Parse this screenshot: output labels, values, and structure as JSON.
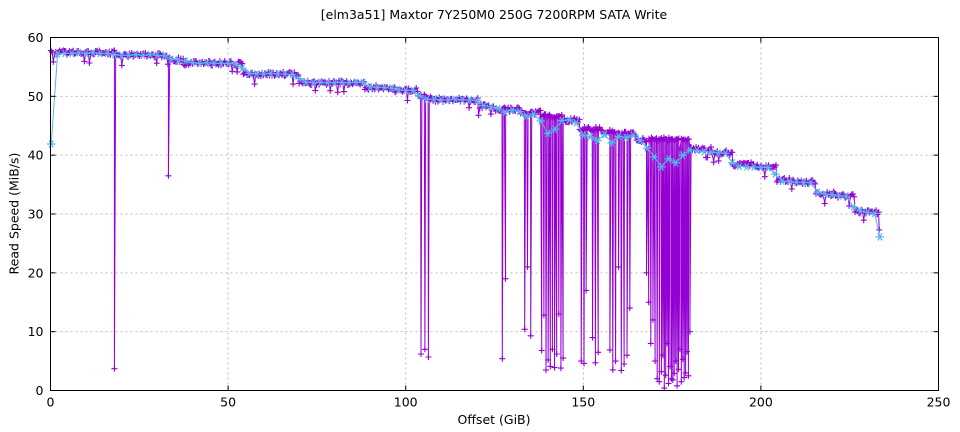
{
  "chart_data": {
    "type": "line",
    "title": "[elm3a51] Maxtor 7Y250M0 250G 7200RPM SATA Write",
    "xlabel": "Offset (GiB)",
    "ylabel": "Read Speed (MiB/s)",
    "xlim": [
      0,
      250
    ],
    "ylim": [
      0,
      60
    ],
    "xticks": [
      0,
      50,
      100,
      150,
      200,
      250
    ],
    "yticks": [
      0,
      10,
      20,
      30,
      40,
      50,
      60
    ],
    "grid": true,
    "legend": "none",
    "colors": {
      "raw": "#9400d3",
      "smooth": "#56b4e9",
      "grid": "#bdbdbd",
      "axis": "#000000",
      "background": "#ffffff"
    },
    "series": [
      {
        "name": "write-speed-samples",
        "style": "linespoints",
        "marker": "plus",
        "color_key": "raw",
        "sample_step_gib": 0.35,
        "band_jitter": 0.42,
        "plateau_segments": [
          [
            0.1,
            18,
            57.4
          ],
          [
            18,
            33.2,
            57.0
          ],
          [
            33.2,
            37.5,
            56.2
          ],
          [
            37.5,
            54.3,
            55.6
          ],
          [
            54.3,
            70,
            53.8
          ],
          [
            70,
            88.5,
            52.3
          ],
          [
            88.5,
            97,
            51.5
          ],
          [
            97,
            103.5,
            51.0
          ],
          [
            103.5,
            107,
            49.9
          ],
          [
            107,
            120.5,
            49.4
          ],
          [
            120.5,
            125,
            48.3
          ],
          [
            125,
            132,
            47.7
          ],
          [
            132,
            138,
            47.2
          ],
          [
            138,
            144,
            46.6
          ],
          [
            144,
            149,
            45.9
          ],
          [
            149,
            155,
            44.4
          ],
          [
            155,
            159.5,
            43.9
          ],
          [
            159.5,
            165,
            43.6
          ],
          [
            165,
            180,
            42.6
          ],
          [
            180,
            186,
            41.0
          ],
          [
            186,
            192,
            40.4
          ],
          [
            192,
            199,
            38.4
          ],
          [
            199,
            204.5,
            38.0
          ],
          [
            204.5,
            210,
            35.7
          ],
          [
            210,
            215.5,
            35.4
          ],
          [
            215.5,
            221,
            33.4
          ],
          [
            221,
            226.5,
            33.1
          ],
          [
            226.5,
            233.3,
            30.3
          ]
        ],
        "slow_spikes": [
          [
            18,
            3.7
          ],
          [
            33.2,
            36.5
          ],
          [
            104.3,
            6.2
          ],
          [
            105.4,
            7.0
          ],
          [
            106.4,
            5.7
          ],
          [
            127.2,
            5.4
          ],
          [
            128.1,
            19.0
          ],
          [
            133.5,
            10.4
          ],
          [
            134.3,
            21.0
          ],
          [
            135.2,
            9.3
          ],
          [
            138.3,
            6.8
          ],
          [
            138.9,
            12.8
          ],
          [
            139.5,
            3.5
          ],
          [
            140.1,
            5.2
          ],
          [
            140.7,
            4.1
          ],
          [
            141.3,
            7.0
          ],
          [
            141.9,
            3.9
          ],
          [
            142.5,
            6.2
          ],
          [
            143.1,
            13.0
          ],
          [
            143.7,
            3.8
          ],
          [
            144.3,
            5.5
          ],
          [
            149.4,
            5.0
          ],
          [
            150.2,
            4.6
          ],
          [
            150.8,
            17.0
          ],
          [
            152.6,
            9.0
          ],
          [
            153.4,
            4.7
          ],
          [
            154.2,
            6.5
          ],
          [
            157.5,
            6.9
          ],
          [
            158.3,
            3.5
          ],
          [
            159.1,
            5.0
          ],
          [
            159.9,
            21.0
          ],
          [
            160.7,
            3.4
          ],
          [
            161.5,
            4.5
          ],
          [
            162.3,
            6.0
          ],
          [
            163.1,
            14.0
          ],
          [
            167.8,
            20.0
          ],
          [
            168.4,
            15.0
          ],
          [
            169.0,
            8.0
          ],
          [
            169.6,
            12.0
          ],
          [
            170.2,
            5.0
          ],
          [
            170.8,
            2.0
          ],
          [
            171.4,
            1.5
          ],
          [
            172.0,
            3.2
          ],
          [
            172.4,
            6.0
          ],
          [
            172.8,
            0.4
          ],
          [
            173.2,
            2.6
          ],
          [
            173.6,
            8.0
          ],
          [
            174.0,
            1.2
          ],
          [
            174.4,
            4.1
          ],
          [
            174.8,
            2.0
          ],
          [
            175.2,
            1.8
          ],
          [
            175.6,
            2.9
          ],
          [
            176.0,
            5.0
          ],
          [
            176.4,
            0.8
          ],
          [
            176.8,
            3.6
          ],
          [
            177.2,
            7.0
          ],
          [
            177.6,
            1.5
          ],
          [
            178.0,
            5.3
          ],
          [
            178.4,
            2.2
          ],
          [
            178.8,
            3.0
          ],
          [
            179.2,
            6.6
          ],
          [
            179.6,
            2.5
          ],
          [
            180.0,
            10.0
          ],
          [
            233.3,
            27.3
          ]
        ]
      },
      {
        "name": "write-speed-smoothed",
        "style": "linespoints",
        "marker": "asterisk",
        "color_key": "smooth",
        "points": [
          [
            0.2,
            41.9
          ],
          [
            2,
            57.2
          ],
          [
            4,
            57.3
          ],
          [
            6,
            57.3
          ],
          [
            8,
            57.4
          ],
          [
            10,
            57.3
          ],
          [
            12,
            57.4
          ],
          [
            14,
            57.3
          ],
          [
            16,
            57.3
          ],
          [
            18,
            57.1
          ],
          [
            20,
            57.0
          ],
          [
            22,
            57.0
          ],
          [
            24,
            57.1
          ],
          [
            26,
            57.0
          ],
          [
            28,
            57.1
          ],
          [
            30,
            57.0
          ],
          [
            32,
            56.9
          ],
          [
            34,
            56.3
          ],
          [
            36,
            56.2
          ],
          [
            38,
            56.0
          ],
          [
            40,
            55.7
          ],
          [
            42,
            55.6
          ],
          [
            44,
            55.7
          ],
          [
            46,
            55.6
          ],
          [
            48,
            55.6
          ],
          [
            50,
            55.6
          ],
          [
            52,
            55.5
          ],
          [
            54,
            54.8
          ],
          [
            56,
            53.9
          ],
          [
            58,
            53.8
          ],
          [
            60,
            53.8
          ],
          [
            62,
            53.9
          ],
          [
            64,
            53.8
          ],
          [
            66,
            53.8
          ],
          [
            68,
            53.7
          ],
          [
            70,
            53.0
          ],
          [
            72,
            52.4
          ],
          [
            74,
            52.3
          ],
          [
            76,
            52.4
          ],
          [
            78,
            52.3
          ],
          [
            80,
            52.3
          ],
          [
            82,
            52.4
          ],
          [
            84,
            52.3
          ],
          [
            86,
            52.4
          ],
          [
            88,
            52.3
          ],
          [
            90,
            51.6
          ],
          [
            92,
            51.5
          ],
          [
            94,
            51.5
          ],
          [
            96,
            51.4
          ],
          [
            98,
            51.1
          ],
          [
            100,
            51.0
          ],
          [
            102,
            51.0
          ],
          [
            104,
            50.1
          ],
          [
            106,
            49.5
          ],
          [
            108,
            49.5
          ],
          [
            110,
            49.4
          ],
          [
            112,
            49.4
          ],
          [
            114,
            49.5
          ],
          [
            116,
            49.4
          ],
          [
            118,
            49.4
          ],
          [
            120,
            49.3
          ],
          [
            122,
            48.4
          ],
          [
            124,
            48.2
          ],
          [
            126,
            47.9
          ],
          [
            128,
            47.3
          ],
          [
            130,
            47.7
          ],
          [
            132,
            47.4
          ],
          [
            134,
            46.6
          ],
          [
            136,
            47.0
          ],
          [
            138,
            45.8
          ],
          [
            140,
            43.7
          ],
          [
            142,
            44.4
          ],
          [
            144,
            45.9
          ],
          [
            146,
            46.0
          ],
          [
            148,
            45.5
          ],
          [
            150,
            43.4
          ],
          [
            152,
            43.1
          ],
          [
            154,
            42.5
          ],
          [
            156,
            43.5
          ],
          [
            158,
            42.1
          ],
          [
            160,
            43.2
          ],
          [
            162,
            43.0
          ],
          [
            164,
            43.4
          ],
          [
            166,
            42.5
          ],
          [
            168,
            41.2
          ],
          [
            170,
            39.7
          ],
          [
            172,
            38.0
          ],
          [
            174,
            39.4
          ],
          [
            176,
            38.7
          ],
          [
            178,
            40.0
          ],
          [
            180,
            40.9
          ],
          [
            182,
            40.8
          ],
          [
            184,
            40.6
          ],
          [
            186,
            40.5
          ],
          [
            188,
            40.4
          ],
          [
            190,
            40.3
          ],
          [
            192,
            38.7
          ],
          [
            194,
            38.1
          ],
          [
            196,
            38.0
          ],
          [
            198,
            38.0
          ],
          [
            200,
            37.9
          ],
          [
            202,
            37.9
          ],
          [
            204,
            36.8
          ],
          [
            206,
            35.6
          ],
          [
            208,
            35.5
          ],
          [
            210,
            35.4
          ],
          [
            212,
            35.4
          ],
          [
            214,
            35.3
          ],
          [
            216,
            33.7
          ],
          [
            218,
            33.4
          ],
          [
            220,
            33.3
          ],
          [
            222,
            33.1
          ],
          [
            224,
            33.0
          ],
          [
            226,
            31.2
          ],
          [
            228,
            30.5
          ],
          [
            230,
            30.3
          ],
          [
            232,
            30.1
          ],
          [
            233.5,
            26.1
          ]
        ]
      }
    ]
  }
}
